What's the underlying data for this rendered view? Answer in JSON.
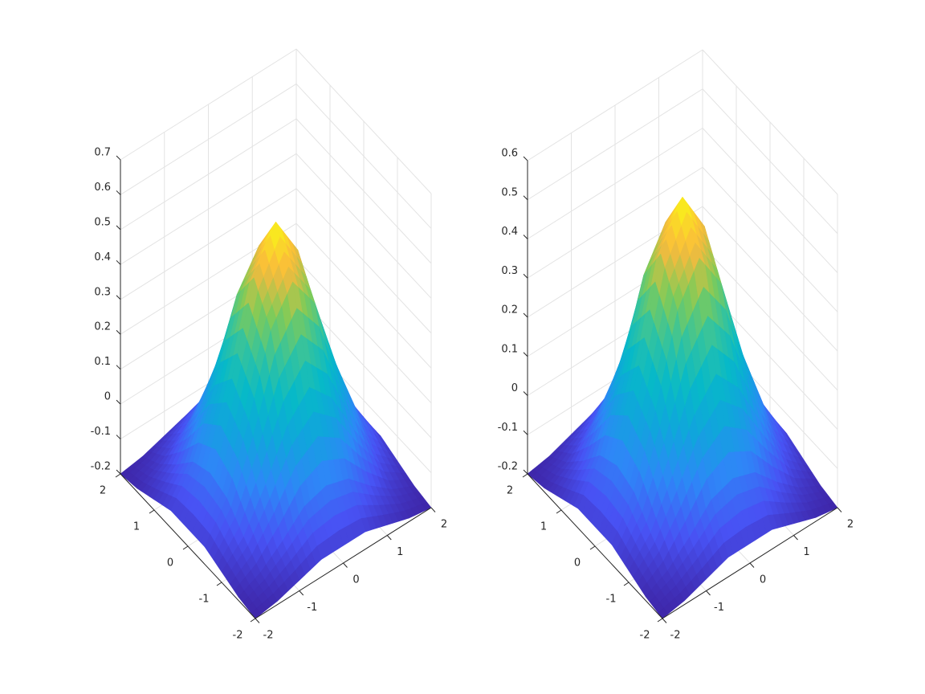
{
  "chart_data": [
    {
      "type": "surface",
      "x": [
        -2,
        -1.5,
        -1,
        -0.5,
        0,
        0.5,
        1,
        1.5,
        2
      ],
      "y": [
        -2,
        -1.5,
        -1,
        -0.5,
        0,
        0.5,
        1,
        1.5,
        2
      ],
      "z": [
        [
          -0.2,
          -0.19,
          -0.17,
          -0.15,
          -0.15,
          -0.15,
          -0.17,
          -0.19,
          -0.2
        ],
        [
          -0.19,
          -0.16,
          -0.11,
          -0.05,
          -0.03,
          -0.05,
          -0.11,
          -0.16,
          -0.19
        ],
        [
          -0.17,
          -0.11,
          0.0,
          0.13,
          0.2,
          0.13,
          0.0,
          -0.11,
          -0.17
        ],
        [
          -0.15,
          -0.05,
          0.13,
          0.35,
          0.45,
          0.35,
          0.13,
          -0.05,
          -0.15
        ],
        [
          -0.15,
          -0.03,
          0.2,
          0.45,
          0.57,
          0.45,
          0.2,
          -0.03,
          -0.15
        ],
        [
          -0.15,
          -0.05,
          0.13,
          0.35,
          0.45,
          0.35,
          0.13,
          -0.05,
          -0.15
        ],
        [
          -0.17,
          -0.11,
          0.0,
          0.13,
          0.2,
          0.13,
          0.0,
          -0.11,
          -0.17
        ],
        [
          -0.19,
          -0.16,
          -0.11,
          -0.05,
          -0.03,
          -0.05,
          -0.11,
          -0.16,
          -0.19
        ],
        [
          -0.2,
          -0.19,
          -0.17,
          -0.15,
          -0.15,
          -0.15,
          -0.17,
          -0.19,
          -0.2
        ]
      ],
      "xlim": [
        -2,
        2
      ],
      "ylim": [
        -2,
        2
      ],
      "zlim": [
        -0.2,
        0.7
      ],
      "xticks": [
        -2,
        -1,
        0,
        1,
        2
      ],
      "yticks": [
        -2,
        -1,
        0,
        1,
        2
      ],
      "zticks": [
        -0.2,
        -0.1,
        0,
        0.1,
        0.2,
        0.3,
        0.4,
        0.5,
        0.6,
        0.7
      ],
      "colormap": "parula",
      "grid": true
    },
    {
      "type": "surface",
      "x": [
        -2,
        -1.5,
        -1,
        -0.5,
        0,
        0.5,
        1,
        1.5,
        2
      ],
      "y": [
        -2,
        -1.5,
        -1,
        -0.5,
        0,
        0.5,
        1,
        1.5,
        2
      ],
      "z": [
        [
          -0.2,
          -0.19,
          -0.17,
          -0.15,
          -0.15,
          -0.15,
          -0.17,
          -0.19,
          -0.2
        ],
        [
          -0.19,
          -0.16,
          -0.11,
          -0.05,
          -0.03,
          -0.05,
          -0.11,
          -0.16,
          -0.19
        ],
        [
          -0.17,
          -0.11,
          0.0,
          0.12,
          0.19,
          0.12,
          0.0,
          -0.11,
          -0.17
        ],
        [
          -0.15,
          -0.05,
          0.12,
          0.34,
          0.44,
          0.34,
          0.12,
          -0.05,
          -0.15
        ],
        [
          -0.15,
          -0.03,
          0.19,
          0.44,
          0.55,
          0.44,
          0.19,
          -0.03,
          -0.15
        ],
        [
          -0.15,
          -0.05,
          0.12,
          0.34,
          0.44,
          0.34,
          0.12,
          -0.05,
          -0.15
        ],
        [
          -0.17,
          -0.11,
          0.0,
          0.12,
          0.19,
          0.12,
          0.0,
          -0.11,
          -0.17
        ],
        [
          -0.19,
          -0.16,
          -0.11,
          -0.05,
          -0.03,
          -0.05,
          -0.11,
          -0.16,
          -0.19
        ],
        [
          -0.2,
          -0.19,
          -0.17,
          -0.15,
          -0.15,
          -0.15,
          -0.17,
          -0.19,
          -0.2
        ]
      ],
      "xlim": [
        -2,
        2
      ],
      "ylim": [
        -2,
        2
      ],
      "zlim": [
        -0.2,
        0.6
      ],
      "xticks": [
        -2,
        -1,
        0,
        1,
        2
      ],
      "yticks": [
        -2,
        -1,
        0,
        1,
        2
      ],
      "zticks": [
        -0.2,
        -0.1,
        0,
        0.1,
        0.2,
        0.3,
        0.4,
        0.5,
        0.6
      ],
      "colormap": "parula",
      "grid": true
    }
  ]
}
